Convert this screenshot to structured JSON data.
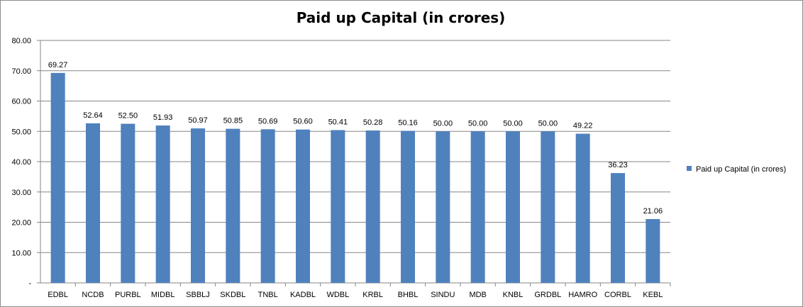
{
  "chart_data": {
    "type": "bar",
    "title": "Paid up Capital (in crores)",
    "categories": [
      "EDBL",
      "NCDB",
      "PURBL",
      "MIDBL",
      "SBBLJ",
      "SKDBL",
      "TNBL",
      "KADBL",
      "WDBL",
      "KRBL",
      "BHBL",
      "SINDU",
      "MDB",
      "KNBL",
      "GRDBL",
      "HAMRO",
      "CORBL",
      "KEBL"
    ],
    "series": [
      {
        "name": "Paid up Capital (in crores)",
        "values": [
          69.27,
          52.64,
          52.5,
          51.93,
          50.97,
          50.85,
          50.69,
          50.6,
          50.41,
          50.28,
          50.16,
          50.0,
          50.0,
          50.0,
          50.0,
          49.22,
          36.23,
          21.06
        ]
      }
    ],
    "data_labels": [
      "69.27",
      "52.64",
      "52.50",
      "51.93",
      "50.97",
      "50.85",
      "50.69",
      "50.60",
      "50.41",
      "50.28",
      "50.16",
      "50.00",
      "50.00",
      "50.00",
      "50.00",
      "49.22",
      "36.23",
      "21.06"
    ],
    "y_ticks": [
      "-",
      "10.00",
      "20.00",
      "30.00",
      "40.00",
      "50.00",
      "60.00",
      "70.00",
      "80.00"
    ],
    "ylim": [
      0,
      80
    ],
    "grid": true,
    "legend_position": "right",
    "colors": {
      "bar": "#4f81bd",
      "grid": "#868686",
      "axis": "#868686"
    }
  }
}
